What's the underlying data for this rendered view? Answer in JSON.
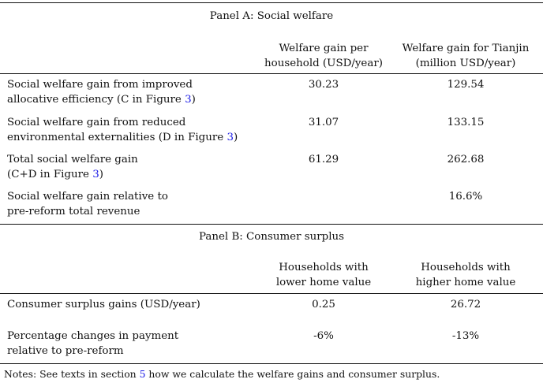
{
  "panel_a": {
    "title": "Panel A: Social welfare",
    "headers": {
      "col2_line1": "Welfare gain per",
      "col2_line2": "household (USD/year)",
      "col3_line1": "Welfare gain for Tianjin",
      "col3_line2": "(million USD/year)"
    },
    "rows": [
      {
        "label_line1": "Social welfare gain from improved",
        "label_line2_pre": "allocative efficiency (C in Figure ",
        "label_link": "3",
        "label_line2_post": ")",
        "value1": "30.23",
        "value2": "129.54"
      },
      {
        "label_line1": "Social welfare gain from reduced",
        "label_line2_pre": "environmental externalities (D in Figure ",
        "label_link": "3",
        "label_line2_post": ")",
        "value1": "31.07",
        "value2": "133.15"
      },
      {
        "label_line1": "Total social welfare gain",
        "label_line2_pre": "(C+D in Figure ",
        "label_link": "3",
        "label_line2_post": ")",
        "value1": "61.29",
        "value2": "262.68"
      },
      {
        "label_line1": "Social welfare gain relative to",
        "label_line2_pre": "pre-reform total revenue",
        "value1": "",
        "value2": "16.6%"
      }
    ]
  },
  "panel_b": {
    "title": "Panel B: Consumer surplus",
    "headers": {
      "col2_line1": "Households with",
      "col2_line2": "lower home value",
      "col3_line1": "Households with",
      "col3_line2": "higher home value"
    },
    "rows": [
      {
        "label_line1": "Consumer surplus gains (USD/year)",
        "value1": "0.25",
        "value2": "26.72"
      },
      {
        "label_line1": "Percentage changes in payment",
        "label_line2": "relative to pre-reform",
        "value1": "-6%",
        "value2": "-13%"
      }
    ]
  },
  "notes": {
    "pre": "Notes: See texts in section ",
    "link": "5",
    "post": " how we calculate the welfare gains and consumer surplus."
  },
  "colors": {
    "link": "#1a1ae6",
    "text": "#111111",
    "rule": "#111111"
  }
}
